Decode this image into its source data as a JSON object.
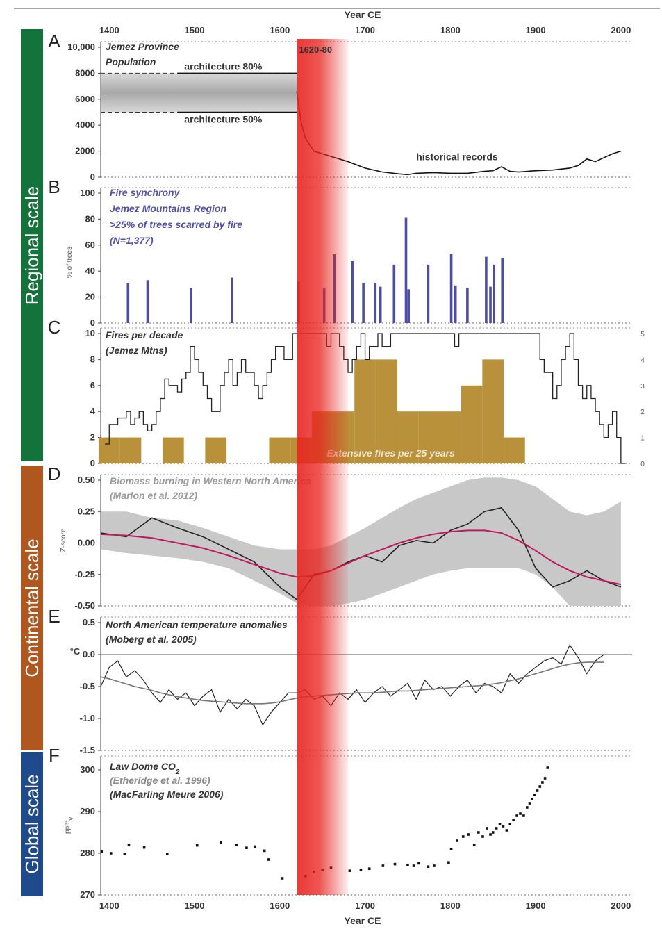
{
  "figure": {
    "x_axis_title": "Year CE",
    "x_ticks": [
      1400,
      1500,
      1600,
      1700,
      1800,
      1900,
      2000
    ],
    "xlim": [
      1390,
      2005
    ],
    "highlight": {
      "label": "1620-80",
      "start": 1620,
      "end": 1680,
      "color": "#e8231f"
    },
    "scale_bars": [
      {
        "label": "Regional scale",
        "color": "#14733a",
        "panels": [
          "A",
          "B",
          "C"
        ]
      },
      {
        "label": "Continental scale",
        "color": "#b0561f",
        "panels": [
          "D",
          "E"
        ]
      },
      {
        "label": "Global scale",
        "color": "#1f4a8c",
        "panels": [
          "F"
        ]
      }
    ]
  },
  "chart_data": [
    {
      "panel": "A",
      "type": "line",
      "title_lines": [
        "Jemez Province",
        "Population"
      ],
      "ylim": [
        0,
        10000
      ],
      "y_ticks": [
        0,
        2000,
        4000,
        6000,
        8000,
        10000
      ],
      "y_tick_labels": [
        "0",
        "2000",
        "4000",
        "6000",
        "8000",
        "10,000"
      ],
      "band": {
        "low": 5000,
        "high": 8000,
        "x_end": 1620
      },
      "band_labels": {
        "high": "architecture 80%",
        "low": "architecture 50%"
      },
      "series_label": "historical records",
      "x": [
        1620,
        1625,
        1630,
        1640,
        1650,
        1660,
        1680,
        1700,
        1720,
        1740,
        1750,
        1760,
        1780,
        1800,
        1820,
        1840,
        1850,
        1860,
        1870,
        1880,
        1900,
        1920,
        1940,
        1950,
        1960,
        1970,
        1980,
        1990,
        2000
      ],
      "values": [
        6600,
        4200,
        3000,
        2000,
        1800,
        1600,
        1200,
        700,
        400,
        250,
        200,
        300,
        350,
        300,
        300,
        450,
        500,
        800,
        450,
        400,
        500,
        550,
        700,
        900,
        1400,
        1200,
        1500,
        1800,
        2000
      ]
    },
    {
      "panel": "B",
      "type": "bar",
      "title_lines": [
        "Fire synchrony",
        "Jemez Mountains Region",
        ">25% of trees scarred by fire",
        "(N=1,377)"
      ],
      "ylabel": "% of trees",
      "ylim": [
        0,
        100
      ],
      "y_ticks": [
        0,
        20,
        40,
        60,
        80,
        100
      ],
      "bar_color": "#4c4ca0",
      "x": [
        1422,
        1445,
        1496,
        1544,
        1622,
        1652,
        1664,
        1685,
        1698,
        1712,
        1718,
        1734,
        1748,
        1751,
        1774,
        1801,
        1806,
        1820,
        1842,
        1847,
        1851,
        1861
      ],
      "values": [
        31,
        33,
        27,
        35,
        32,
        27,
        53,
        48,
        31,
        31,
        28,
        45,
        81,
        26,
        45,
        53,
        29,
        27,
        51,
        28,
        45,
        50
      ]
    },
    {
      "panel": "C",
      "type": "line",
      "title_lines": [
        "Fires per decade",
        "(Jemez Mtns)"
      ],
      "ylim": [
        0,
        10
      ],
      "y_ticks": [
        0,
        2,
        4,
        6,
        8,
        10
      ],
      "y2lim": [
        0,
        5
      ],
      "y2_ticks": [
        0,
        1,
        2,
        3,
        4,
        5
      ],
      "area_label": "Extensive fires per 25 years",
      "area_color": "#b8913a",
      "x": [
        1395,
        1400,
        1405,
        1410,
        1420,
        1425,
        1430,
        1435,
        1440,
        1445,
        1450,
        1455,
        1460,
        1465,
        1470,
        1475,
        1480,
        1485,
        1490,
        1495,
        1500,
        1505,
        1510,
        1515,
        1520,
        1525,
        1530,
        1535,
        1540,
        1545,
        1550,
        1555,
        1560,
        1565,
        1570,
        1575,
        1580,
        1585,
        1590,
        1595,
        1600,
        1605,
        1610,
        1615,
        1620,
        1650,
        1655,
        1660,
        1665,
        1670,
        1675,
        1680,
        1685,
        1690,
        1695,
        1700,
        1705,
        1710,
        1715,
        1720,
        1730,
        1740,
        1790,
        1795,
        1800,
        1805,
        1810,
        1900,
        1905,
        1910,
        1915,
        1920,
        1925,
        1930,
        1935,
        1940,
        1945,
        1950,
        1955,
        1960,
        1965,
        1970,
        1975,
        1980,
        1985,
        1990,
        1995,
        2000,
        2005
      ],
      "values": [
        1.5,
        3,
        3,
        3.5,
        4,
        3,
        3.5,
        4,
        3,
        2.5,
        3,
        4,
        5,
        6.5,
        6,
        6,
        5.5,
        6.5,
        7,
        9,
        8,
        7,
        6,
        5,
        4,
        4,
        6,
        7,
        8,
        6,
        7,
        8,
        7,
        7,
        6,
        5,
        6,
        7,
        8,
        9,
        9,
        8,
        8,
        10,
        10,
        10,
        9,
        10,
        10,
        9,
        8,
        7,
        8,
        9,
        10,
        8,
        9,
        9,
        10,
        9,
        10,
        10,
        10,
        10,
        10,
        9,
        10,
        10,
        8,
        7,
        7,
        5,
        6,
        8,
        9,
        10,
        8,
        6,
        5,
        6,
        5,
        4,
        3,
        2,
        3,
        4,
        2,
        0,
        0
      ],
      "area_x": [
        1400,
        1425,
        1450,
        1475,
        1500,
        1525,
        1550,
        1575,
        1600,
        1625,
        1650,
        1675,
        1700,
        1725,
        1750,
        1775,
        1800,
        1825,
        1850,
        1875
      ],
      "area_values": [
        1,
        1,
        0,
        1,
        0,
        1,
        0,
        0,
        1,
        1,
        2,
        2,
        4,
        4,
        2,
        2,
        2,
        3,
        4,
        1
      ]
    },
    {
      "panel": "D",
      "type": "line",
      "title_lines": [
        "Biomass burning in Western North America",
        "(Marlon et al. 2012)"
      ],
      "ylabel": "Z-score",
      "ylim": [
        -0.5,
        0.5
      ],
      "y_ticks": [
        -0.5,
        -0.25,
        0.0,
        0.25,
        0.5
      ],
      "y_tick_labels": [
        "-0.50",
        "-0.25",
        "0.00",
        "0.25",
        "0.50"
      ],
      "x": [
        1390,
        1420,
        1450,
        1480,
        1510,
        1540,
        1570,
        1600,
        1620,
        1640,
        1660,
        1680,
        1700,
        1720,
        1740,
        1760,
        1780,
        1800,
        1820,
        1840,
        1860,
        1880,
        1900,
        1920,
        1940,
        1960,
        1980,
        2000
      ],
      "band_upper": [
        0.25,
        0.25,
        0.2,
        0.18,
        0.12,
        0.05,
        -0.02,
        -0.05,
        -0.05,
        -0.05,
        -0.02,
        0.05,
        0.12,
        0.2,
        0.28,
        0.35,
        0.4,
        0.45,
        0.5,
        0.52,
        0.52,
        0.5,
        0.45,
        0.35,
        0.25,
        0.22,
        0.25,
        0.33
      ],
      "band_lower": [
        -0.05,
        -0.08,
        -0.1,
        -0.12,
        -0.15,
        -0.2,
        -0.3,
        -0.4,
        -0.48,
        -0.5,
        -0.5,
        -0.48,
        -0.45,
        -0.4,
        -0.35,
        -0.3,
        -0.25,
        -0.22,
        -0.2,
        -0.2,
        -0.2,
        -0.2,
        -0.25,
        -0.35,
        -0.5,
        -0.5,
        -0.5,
        -0.5
      ],
      "series": [
        {
          "values": [
            0.08,
            0.05,
            0.2,
            0.12,
            0.05,
            -0.05,
            -0.15,
            -0.35,
            -0.45,
            -0.25,
            -0.22,
            -0.15,
            -0.1,
            -0.15,
            -0.02,
            0.02,
            0.0,
            0.1,
            0.15,
            0.25,
            0.28,
            0.1,
            -0.2,
            -0.35,
            -0.3,
            -0.22,
            -0.3,
            -0.35
          ],
          "color": "#222222"
        },
        {
          "values": [
            0.07,
            0.06,
            0.04,
            0.0,
            -0.04,
            -0.1,
            -0.17,
            -0.24,
            -0.27,
            -0.26,
            -0.22,
            -0.16,
            -0.1,
            -0.05,
            0.0,
            0.04,
            0.07,
            0.09,
            0.1,
            0.1,
            0.08,
            0.02,
            -0.06,
            -0.15,
            -0.22,
            -0.27,
            -0.3,
            -0.33
          ],
          "color": "#c2185b"
        }
      ]
    },
    {
      "panel": "E",
      "type": "line",
      "title_lines": [
        "North American temperature anomalies",
        "(Moberg et al. 2005)"
      ],
      "ylabel": "°C",
      "ylim": [
        -1.5,
        0.5
      ],
      "y_ticks": [
        -1.5,
        -1.0,
        -0.5,
        0.0,
        0.5
      ],
      "y_tick_labels": [
        "-1.5",
        "-1.0",
        "-0.5",
        "0.0",
        "0.5"
      ],
      "x": [
        1390,
        1400,
        1410,
        1420,
        1430,
        1440,
        1450,
        1460,
        1470,
        1480,
        1490,
        1500,
        1510,
        1520,
        1530,
        1540,
        1550,
        1560,
        1570,
        1580,
        1590,
        1600,
        1610,
        1620,
        1630,
        1640,
        1650,
        1660,
        1670,
        1680,
        1690,
        1700,
        1710,
        1720,
        1730,
        1740,
        1750,
        1760,
        1770,
        1780,
        1790,
        1800,
        1810,
        1820,
        1830,
        1840,
        1850,
        1860,
        1870,
        1880,
        1890,
        1900,
        1910,
        1920,
        1930,
        1940,
        1950,
        1960,
        1970,
        1980
      ],
      "series": [
        {
          "values": [
            -0.5,
            -0.2,
            -0.1,
            -0.35,
            -0.25,
            -0.4,
            -0.6,
            -0.75,
            -0.55,
            -0.7,
            -0.6,
            -0.8,
            -0.65,
            -0.55,
            -0.9,
            -0.7,
            -0.85,
            -0.7,
            -0.8,
            -1.1,
            -0.9,
            -0.75,
            -0.6,
            -0.6,
            -0.55,
            -0.7,
            -0.65,
            -0.8,
            -0.6,
            -0.7,
            -0.55,
            -0.75,
            -0.6,
            -0.5,
            -0.65,
            -0.55,
            -0.45,
            -0.7,
            -0.4,
            -0.55,
            -0.5,
            -0.65,
            -0.5,
            -0.4,
            -0.6,
            -0.45,
            -0.5,
            -0.6,
            -0.3,
            -0.45,
            -0.3,
            -0.2,
            -0.1,
            -0.05,
            -0.15,
            0.15,
            -0.05,
            -0.3,
            -0.1,
            0.0
          ],
          "color": "#222222"
        },
        {
          "values": [
            -0.35,
            -0.38,
            -0.42,
            -0.46,
            -0.5,
            -0.53,
            -0.56,
            -0.6,
            -0.63,
            -0.66,
            -0.68,
            -0.7,
            -0.72,
            -0.73,
            -0.74,
            -0.75,
            -0.76,
            -0.77,
            -0.77,
            -0.77,
            -0.76,
            -0.74,
            -0.71,
            -0.68,
            -0.66,
            -0.65,
            -0.64,
            -0.63,
            -0.62,
            -0.61,
            -0.6,
            -0.6,
            -0.6,
            -0.59,
            -0.58,
            -0.57,
            -0.57,
            -0.56,
            -0.55,
            -0.54,
            -0.53,
            -0.52,
            -0.51,
            -0.5,
            -0.49,
            -0.48,
            -0.46,
            -0.44,
            -0.41,
            -0.38,
            -0.34,
            -0.3,
            -0.26,
            -0.22,
            -0.18,
            -0.15,
            -0.13,
            -0.12,
            -0.12,
            -0.12
          ],
          "color": "#777777"
        }
      ]
    },
    {
      "panel": "F",
      "type": "scatter",
      "title_lines": [
        "Law Dome CO",
        "(Etheridge et al. 1996)",
        "(MacFarling Meure 2006)"
      ],
      "title_subscript": "2",
      "ylabel": "ppm",
      "ylabel_subscript": "v",
      "ylim": [
        270,
        302
      ],
      "y_ticks": [
        270,
        280,
        290,
        300
      ],
      "x": [
        1391,
        1402,
        1418,
        1423,
        1441,
        1468,
        1503,
        1531,
        1549,
        1561,
        1571,
        1582,
        1587,
        1603,
        1630,
        1640,
        1650,
        1660,
        1682,
        1695,
        1705,
        1721,
        1735,
        1750,
        1757,
        1763,
        1774,
        1781,
        1798,
        1801,
        1808,
        1815,
        1821,
        1828,
        1833,
        1838,
        1843,
        1847,
        1850,
        1854,
        1858,
        1862,
        1866,
        1870,
        1874,
        1878,
        1882,
        1886,
        1890,
        1893,
        1896,
        1899,
        1902,
        1905,
        1908,
        1911,
        1914
      ],
      "values": [
        280.4,
        280.0,
        279.8,
        282.0,
        281.4,
        279.8,
        281.9,
        282.6,
        282.0,
        281.3,
        281.6,
        280.6,
        278.5,
        274.0,
        274.5,
        275.5,
        276.0,
        276.5,
        275.8,
        276.0,
        276.3,
        277.0,
        277.4,
        277.2,
        277.0,
        277.6,
        276.8,
        277.0,
        277.8,
        281.0,
        283.0,
        284.0,
        284.5,
        282.0,
        285.0,
        284.0,
        286.0,
        284.5,
        285.0,
        286.0,
        287.0,
        286.5,
        285.5,
        287.0,
        288.0,
        289.0,
        289.5,
        289.0,
        291.0,
        292.0,
        293.0,
        294.0,
        295.0,
        296.0,
        297.0,
        298.0,
        300.5
      ]
    }
  ]
}
